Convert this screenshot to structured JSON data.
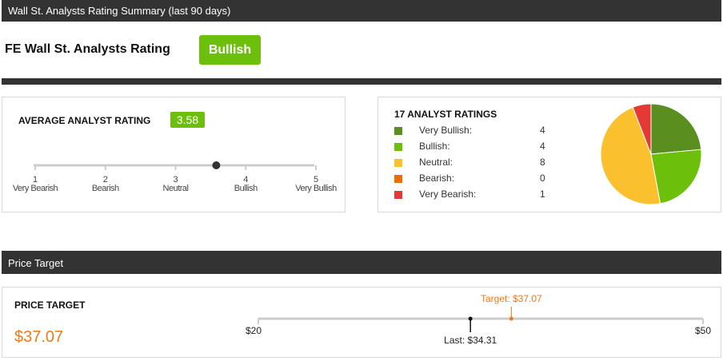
{
  "rating_summary": {
    "header": "Wall St. Analysts Rating Summary (last 90 days)",
    "title": "FE Wall St. Analysts Rating",
    "badge": "Bullish"
  },
  "average_rating": {
    "label": "AVERAGE ANALYST RATING",
    "value": "3.58",
    "marker_value": 3.58,
    "scale": [
      {
        "num": "1",
        "text": "Very Bearish"
      },
      {
        "num": "2",
        "text": "Bearish"
      },
      {
        "num": "3",
        "text": "Neutral"
      },
      {
        "num": "4",
        "text": "Bullish"
      },
      {
        "num": "5",
        "text": "Very Bullish"
      }
    ]
  },
  "analyst_ratings": {
    "title": "17 ANALYST RATINGS",
    "items": [
      {
        "name": "Very Bullish:",
        "count": "4",
        "value": 4,
        "color": "#5a8f1f"
      },
      {
        "name": "Bullish:",
        "count": "4",
        "value": 4,
        "color": "#6cbf0b"
      },
      {
        "name": "Neutral:",
        "count": "8",
        "value": 8,
        "color": "#fbc02d"
      },
      {
        "name": "Bearish:",
        "count": "0",
        "value": 0,
        "color": "#ef6c00"
      },
      {
        "name": "Very Bearish:",
        "count": "1",
        "value": 1,
        "color": "#e53935"
      }
    ]
  },
  "price_target": {
    "header": "Price Target",
    "label": "PRICE TARGET",
    "value": "$37.07",
    "min_label": "$20",
    "max_label": "$50",
    "target_label": "Target: $37.07",
    "last_label": "Last: $34.31",
    "min": 20,
    "max": 50,
    "target": 37.07,
    "last": 34.31
  },
  "chart_data": {
    "type": "pie",
    "title": "17 ANALYST RATINGS",
    "categories": [
      "Very Bullish",
      "Bullish",
      "Neutral",
      "Bearish",
      "Very Bearish"
    ],
    "values": [
      4,
      4,
      8,
      0,
      1
    ],
    "colors": [
      "#5a8f1f",
      "#6cbf0b",
      "#fbc02d",
      "#ef6c00",
      "#e53935"
    ]
  }
}
